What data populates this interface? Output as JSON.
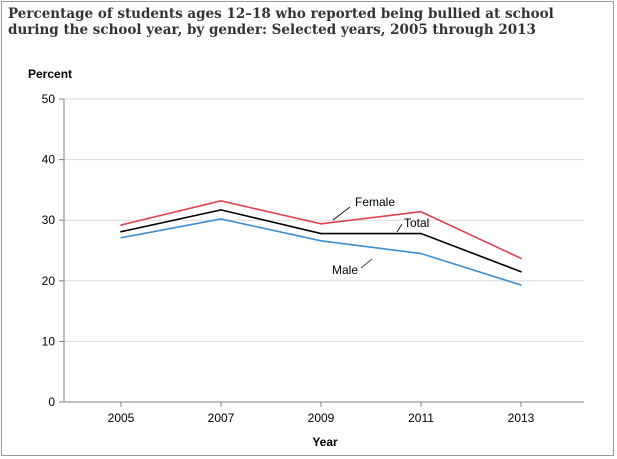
{
  "chart_data": {
    "type": "line",
    "title": "Percentage of students ages 12–18 who reported being bullied at school during the school year, by gender: Selected years, 2005 through 2013",
    "xlabel": "Year",
    "ylabel": "Percent",
    "categories": [
      "2005",
      "2007",
      "2009",
      "2011",
      "2013"
    ],
    "ylim": [
      0,
      50
    ],
    "yticks": [
      0,
      10,
      20,
      30,
      40,
      50
    ],
    "grid": true,
    "series": [
      {
        "name": "Female",
        "values": [
          29.2,
          33.2,
          29.4,
          31.4,
          23.7
        ],
        "color": "#e0424f"
      },
      {
        "name": "Total",
        "values": [
          28.1,
          31.7,
          27.8,
          27.8,
          21.5
        ],
        "color": "#000000"
      },
      {
        "name": "Male",
        "values": [
          27.1,
          30.2,
          26.6,
          24.5,
          19.3
        ],
        "color": "#3b8fd0"
      }
    ]
  }
}
